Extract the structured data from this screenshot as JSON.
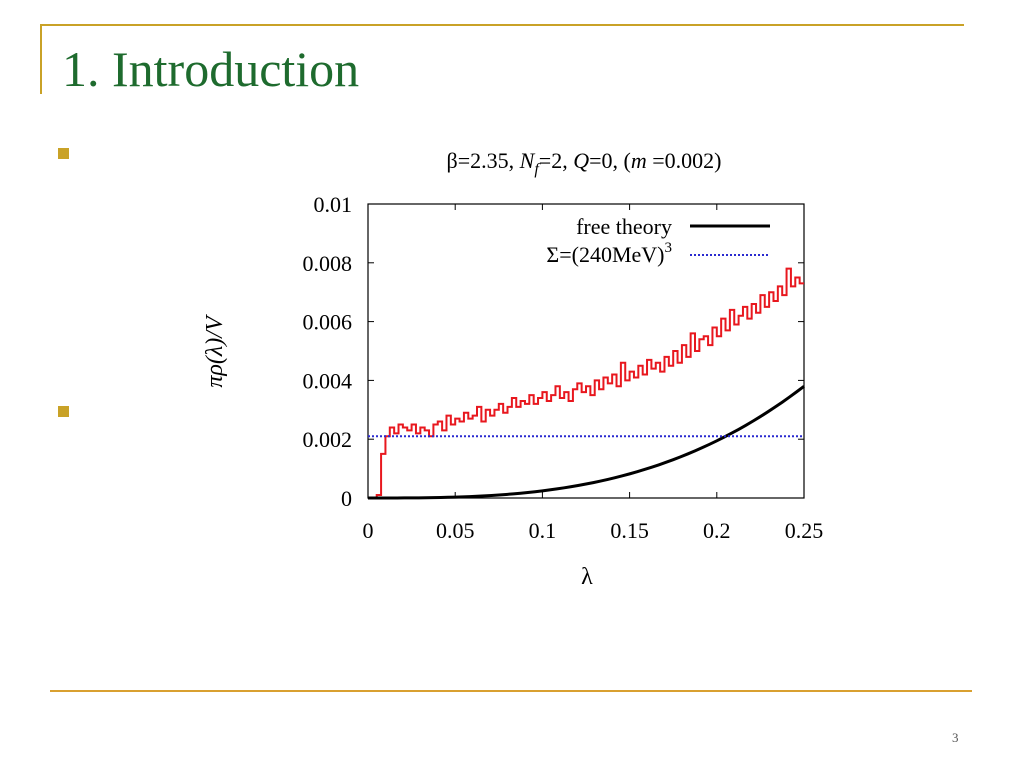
{
  "slide": {
    "title": "1. Introduction",
    "page_number": "3"
  },
  "colors": {
    "title": "#1e6b2e",
    "accent": "#c9a227",
    "data_series": "#e8171e",
    "free_theory": "#000000",
    "sigma_line": "#2a2ad0"
  },
  "chart_data": {
    "type": "line",
    "title_parts": {
      "beta": "β=2.35,",
      "nf": "N",
      "nf_sub": "f",
      "nf_rest": "=2,",
      "q": "Q",
      "q_rest": "=0, (",
      "m": "m",
      "m_rest": "=0.002)"
    },
    "xlabel": "λ",
    "ylabel": "πρ(λ)/V",
    "xlim": [
      0,
      0.25
    ],
    "ylim": [
      0,
      0.01
    ],
    "x_ticks": [
      "0",
      "0.05",
      "0.1",
      "0.15",
      "0.2",
      "0.25"
    ],
    "x_tick_values": [
      0,
      0.05,
      0.1,
      0.15,
      0.2,
      0.25
    ],
    "y_ticks": [
      "0",
      "0.002",
      "0.004",
      "0.006",
      "0.008",
      "0.01"
    ],
    "y_tick_values": [
      0,
      0.002,
      0.004,
      0.006,
      0.008,
      0.01
    ],
    "legend": {
      "placement": "top-right",
      "free_theory": "free theory",
      "sigma": "Σ=(240MeV)",
      "sigma_sup": "3"
    },
    "series": [
      {
        "style": "step",
        "color": "#e8171e",
        "x": [
          0.005,
          0.0075,
          0.01,
          0.0125,
          0.015,
          0.0175,
          0.02,
          0.0225,
          0.025,
          0.0275,
          0.03,
          0.0325,
          0.035,
          0.0375,
          0.04,
          0.0425,
          0.045,
          0.0475,
          0.05,
          0.0525,
          0.055,
          0.0575,
          0.06,
          0.0625,
          0.065,
          0.0675,
          0.07,
          0.0725,
          0.075,
          0.0775,
          0.08,
          0.0825,
          0.085,
          0.0875,
          0.09,
          0.0925,
          0.095,
          0.0975,
          0.1,
          0.1025,
          0.105,
          0.1075,
          0.11,
          0.1125,
          0.115,
          0.1175,
          0.12,
          0.1225,
          0.125,
          0.1275,
          0.13,
          0.1325,
          0.135,
          0.1375,
          0.14,
          0.1425,
          0.145,
          0.1475,
          0.15,
          0.1525,
          0.155,
          0.1575,
          0.16,
          0.1625,
          0.165,
          0.1675,
          0.17,
          0.1725,
          0.175,
          0.1775,
          0.18,
          0.1825,
          0.185,
          0.1875,
          0.19,
          0.1925,
          0.195,
          0.1975,
          0.2,
          0.2025,
          0.205,
          0.2075,
          0.21,
          0.2125,
          0.215,
          0.2175,
          0.22,
          0.2225,
          0.225,
          0.2275,
          0.23,
          0.2325,
          0.235,
          0.2375,
          0.24,
          0.2425,
          0.245,
          0.2475
        ],
        "y": [
          0.0001,
          0.0015,
          0.0021,
          0.0024,
          0.0022,
          0.0025,
          0.0024,
          0.0023,
          0.0025,
          0.0022,
          0.0024,
          0.0023,
          0.0021,
          0.0025,
          0.0026,
          0.0023,
          0.0028,
          0.0025,
          0.0027,
          0.0026,
          0.0029,
          0.0027,
          0.0028,
          0.0031,
          0.0026,
          0.003,
          0.0028,
          0.003,
          0.0032,
          0.0029,
          0.0031,
          0.0034,
          0.0031,
          0.0033,
          0.0032,
          0.0035,
          0.0032,
          0.0034,
          0.0036,
          0.0033,
          0.0035,
          0.0038,
          0.0034,
          0.0036,
          0.0033,
          0.0037,
          0.0039,
          0.0036,
          0.0038,
          0.0035,
          0.004,
          0.0037,
          0.0041,
          0.0039,
          0.0042,
          0.0038,
          0.0046,
          0.004,
          0.0043,
          0.0041,
          0.0045,
          0.0042,
          0.0047,
          0.0044,
          0.0046,
          0.0043,
          0.0048,
          0.0045,
          0.005,
          0.0046,
          0.0052,
          0.0048,
          0.0056,
          0.005,
          0.0054,
          0.0055,
          0.0052,
          0.0058,
          0.0055,
          0.0061,
          0.0057,
          0.0064,
          0.0059,
          0.0062,
          0.0065,
          0.0061,
          0.0066,
          0.0063,
          0.0069,
          0.0065,
          0.007,
          0.0067,
          0.0072,
          0.0069,
          0.0078,
          0.0072,
          0.0075,
          0.0073
        ]
      },
      {
        "name": "free theory",
        "style": "curve",
        "color": "#000000",
        "x": [
          0,
          0.025,
          0.05,
          0.075,
          0.1,
          0.125,
          0.15,
          0.175,
          0.2,
          0.225,
          0.25
        ],
        "y": [
          0,
          4e-06,
          3e-05,
          0.0001,
          0.00024,
          0.00047,
          0.00082,
          0.0013,
          0.00194,
          0.00276,
          0.0038
        ]
      },
      {
        "name": "Σ=(240MeV)3",
        "style": "dotted",
        "color": "#2a2ad0",
        "x": [
          0,
          0.25
        ],
        "y": [
          0.0021,
          0.0021
        ]
      }
    ]
  }
}
